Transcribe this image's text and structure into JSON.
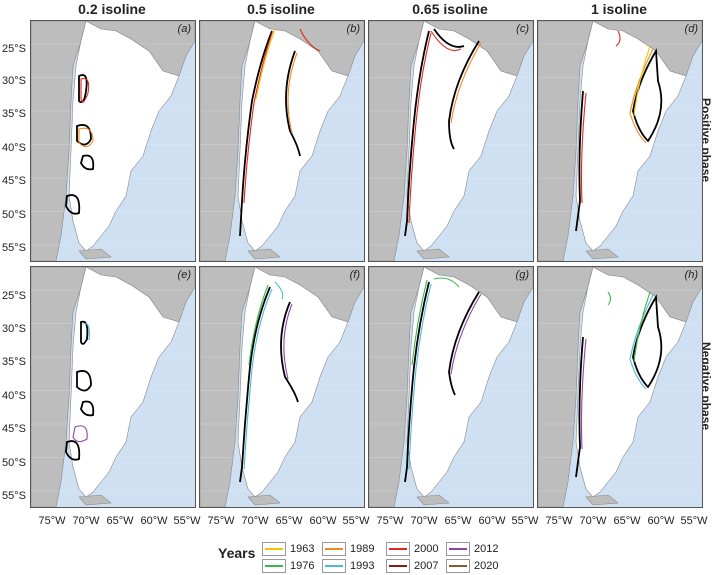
{
  "columns": [
    "0.2 isoline",
    "0.5 isoline",
    "0.65 isoline",
    "1 isoline"
  ],
  "rows": [
    "Positive phase",
    "Negative phase"
  ],
  "panel_labels": [
    "(a)",
    "(b)",
    "(c)",
    "(d)",
    "(e)",
    "(f)",
    "(g)",
    "(h)"
  ],
  "y_ticks": [
    "25°S",
    "30°S",
    "35°S",
    "40°S",
    "45°S",
    "50°S",
    "55°S"
  ],
  "x_ticks": [
    "75°W",
    "70°W",
    "65°W",
    "60°W",
    "55°W"
  ],
  "colors": {
    "ocean": "#cfe0f2",
    "land_other": "#bdbdbd",
    "argentina": "#ffffff"
  },
  "legend": {
    "title": "Years",
    "items": [
      {
        "year": "1963",
        "color": "#f2c400"
      },
      {
        "year": "1976",
        "color": "#3cb84a"
      },
      {
        "year": "1989",
        "color": "#f08a24"
      },
      {
        "year": "1993",
        "color": "#4fb8d8"
      },
      {
        "year": "2000",
        "color": "#e0281e"
      },
      {
        "year": "2007",
        "color": "#8b1a10"
      },
      {
        "year": "2012",
        "color": "#8e44ad"
      },
      {
        "year": "2020",
        "color": "#8b5a2b"
      }
    ]
  }
}
